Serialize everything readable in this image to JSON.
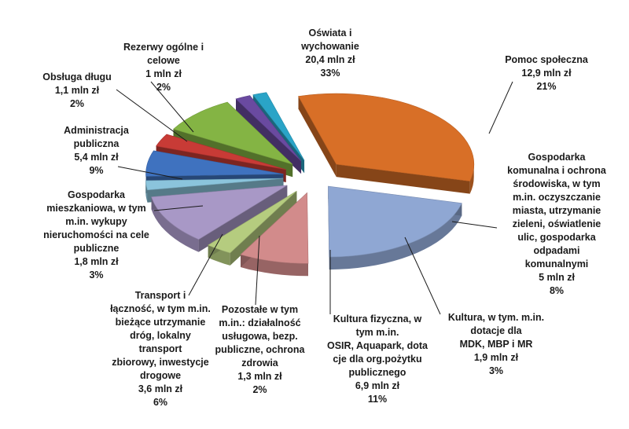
{
  "chart_data": {
    "type": "pie",
    "unit": "mln zł",
    "slices": [
      {
        "key": "oswiata",
        "color": "#d86f27",
        "value": 20.4,
        "percent": 33,
        "lines": [
          "Oświata i",
          "wychowanie"
        ],
        "value_label": "20,4 mln zł",
        "percent_label": "33%"
      },
      {
        "key": "pomoc",
        "color": "#8fa7d3",
        "value": 12.9,
        "percent": 21,
        "lines": [
          "Pomoc społeczna"
        ],
        "value_label": "12,9 mln zł",
        "percent_label": "21%"
      },
      {
        "key": "gosp-komunalna",
        "color": "#d28b8b",
        "value": 5.0,
        "percent": 8,
        "lines": [
          "Gospodarka",
          "komunalna  i ochrona",
          "środowiska, w tym",
          "m.in. oczyszczanie",
          "miasta, utrzymanie",
          "zieleni, oświatlenie",
          "ulic, gospodarka",
          "odpadami",
          "komunalnymi"
        ],
        "value_label": "5 mln zł",
        "percent_label": "8%"
      },
      {
        "key": "kultura",
        "color": "#b5cc7f",
        "value": 1.9,
        "percent": 3,
        "lines": [
          "Kultura, w tym. m.in.",
          "dotacje dla",
          "MDK, MBP i MR"
        ],
        "value_label": "1,9 mln zł",
        "percent_label": "3%"
      },
      {
        "key": "kultura-fizyczna",
        "color": "#a898c6",
        "value": 6.9,
        "percent": 11,
        "lines": [
          "Kultura fizyczna, w",
          "tym m.in.",
          "OSIR, Aquapark, dota",
          "cje dla org.pożytku",
          "publicznego"
        ],
        "value_label": "6,9 mln zł",
        "percent_label": "11%"
      },
      {
        "key": "pozostale",
        "color": "#8bc4dc",
        "value": 1.3,
        "percent": 2,
        "lines": [
          "Pozostałe w tym",
          "m.in.: działalność",
          "usługowa, bezp.",
          "publiczne, ochrona",
          "zdrowia"
        ],
        "value_label": "1,3 mln zł",
        "percent_label": "2%"
      },
      {
        "key": "transport",
        "color": "#3f72bf",
        "value": 3.6,
        "percent": 6,
        "lines": [
          "Transport i",
          "łączność, w tym m.in.",
          "bieżące utrzymanie",
          "dróg, lokalny",
          "transport",
          "zbiorowy, inwestycje",
          "drogowe"
        ],
        "value_label": "3,6 mln zł",
        "percent_label": "6%"
      },
      {
        "key": "gosp-mieszkaniowa",
        "color": "#c83b36",
        "value": 1.8,
        "percent": 3,
        "lines": [
          "Gospodarka",
          "mieszkaniowa, w tym",
          "m.in. wykupy",
          "nieruchomości na cele",
          "publiczne"
        ],
        "value_label": "1,8 mln zł",
        "percent_label": "3%"
      },
      {
        "key": "administracja",
        "color": "#84b444",
        "value": 5.4,
        "percent": 9,
        "lines": [
          "Administracja",
          "publiczna"
        ],
        "value_label": "5,4 mln zł",
        "percent_label": "9%"
      },
      {
        "key": "obsluga-dlugu",
        "color": "#6a4aa0",
        "value": 1.1,
        "percent": 2,
        "lines": [
          "Obsługa długu"
        ],
        "value_label": "1,1 mln zł",
        "percent_label": "2%"
      },
      {
        "key": "rezerwy",
        "color": "#2aa4c7",
        "value": 1.0,
        "percent": 2,
        "lines": [
          "Rezerwy ogólne i",
          "celowe"
        ],
        "value_label": "1 mln zł",
        "percent_label": "2%"
      }
    ]
  }
}
